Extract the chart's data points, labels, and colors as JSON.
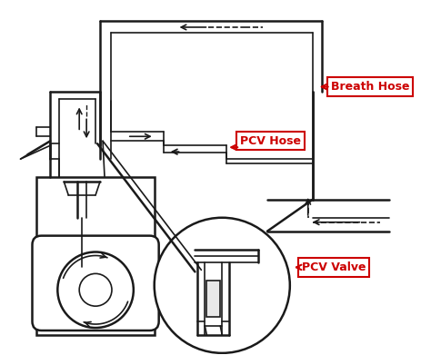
{
  "bg_color": "#ffffff",
  "line_color": "#1a1a1a",
  "label_color": "#cc0000",
  "label_bg": "#ffffff",
  "label_border": "#cc0000",
  "labels": {
    "breath_hose": "Breath Hose",
    "pcv_hose": "PCV Hose",
    "pcv_valve": "PCV Valve"
  },
  "figsize": [
    4.74,
    3.91
  ],
  "dpi": 100
}
